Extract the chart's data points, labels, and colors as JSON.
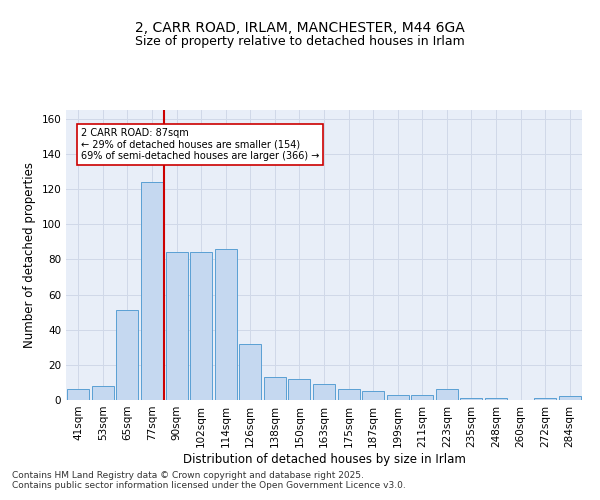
{
  "title_line1": "2, CARR ROAD, IRLAM, MANCHESTER, M44 6GA",
  "title_line2": "Size of property relative to detached houses in Irlam",
  "xlabel": "Distribution of detached houses by size in Irlam",
  "ylabel": "Number of detached properties",
  "bar_labels": [
    "41sqm",
    "53sqm",
    "65sqm",
    "77sqm",
    "90sqm",
    "102sqm",
    "114sqm",
    "126sqm",
    "138sqm",
    "150sqm",
    "163sqm",
    "175sqm",
    "187sqm",
    "199sqm",
    "211sqm",
    "223sqm",
    "235sqm",
    "248sqm",
    "260sqm",
    "272sqm",
    "284sqm"
  ],
  "bar_values": [
    6,
    8,
    51,
    124,
    84,
    84,
    86,
    32,
    13,
    12,
    9,
    6,
    5,
    3,
    3,
    6,
    1,
    1,
    0,
    1,
    2
  ],
  "bar_color": "#c5d8f0",
  "bar_edge_color": "#5a9fd4",
  "vline_color": "#cc0000",
  "annotation_text": "2 CARR ROAD: 87sqm\n← 29% of detached houses are smaller (154)\n69% of semi-detached houses are larger (366) →",
  "annotation_box_color": "#ffffff",
  "annotation_box_edge": "#cc0000",
  "ylim": [
    0,
    165
  ],
  "yticks": [
    0,
    20,
    40,
    60,
    80,
    100,
    120,
    140,
    160
  ],
  "grid_color": "#d0d8e8",
  "background_color": "#e8eef8",
  "footnote": "Contains HM Land Registry data © Crown copyright and database right 2025.\nContains public sector information licensed under the Open Government Licence v3.0.",
  "title_fontsize": 10,
  "subtitle_fontsize": 9,
  "axis_label_fontsize": 8.5,
  "tick_fontsize": 7.5,
  "footnote_fontsize": 6.5
}
